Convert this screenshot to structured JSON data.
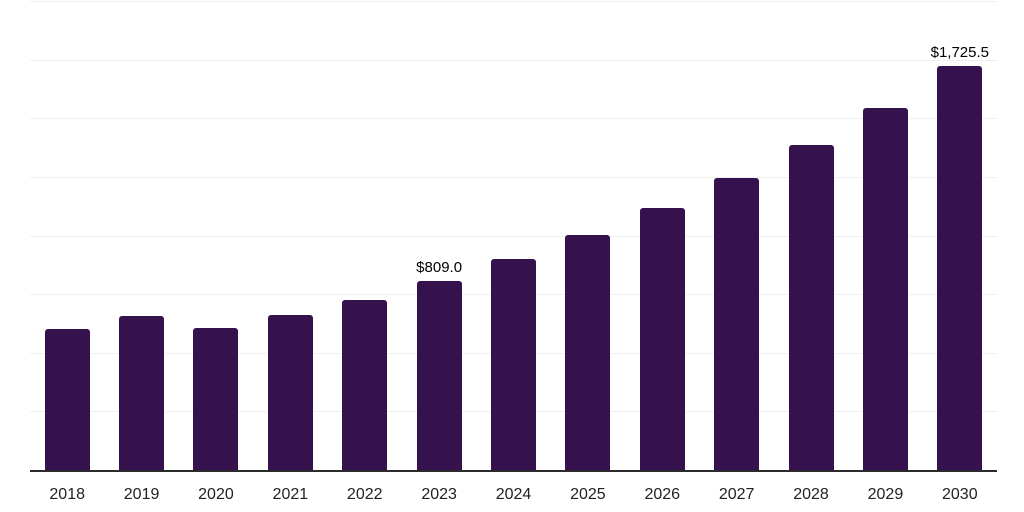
{
  "chart_data": {
    "type": "bar",
    "title": "",
    "xlabel": "",
    "ylabel": "",
    "categories": [
      "2018",
      "2019",
      "2020",
      "2021",
      "2022",
      "2023",
      "2024",
      "2025",
      "2026",
      "2027",
      "2028",
      "2029",
      "2030"
    ],
    "values": [
      607,
      662,
      611,
      667,
      730,
      809.0,
      903,
      1006,
      1120,
      1250,
      1392,
      1547,
      1725.5
    ],
    "value_labels": {
      "2023": "$809.0",
      "2030": "$1,725.5"
    },
    "ylim": [
      0,
      2000
    ],
    "grid_interval": 250,
    "grid": "horizontal",
    "legend": "none",
    "colors": {
      "bar": "#35114E",
      "axis_line": "#2b2b2b",
      "gridline": "#f0f0f0",
      "value_label_text": "#000000",
      "tick_label_text": "#222222",
      "background": "#ffffff"
    }
  }
}
